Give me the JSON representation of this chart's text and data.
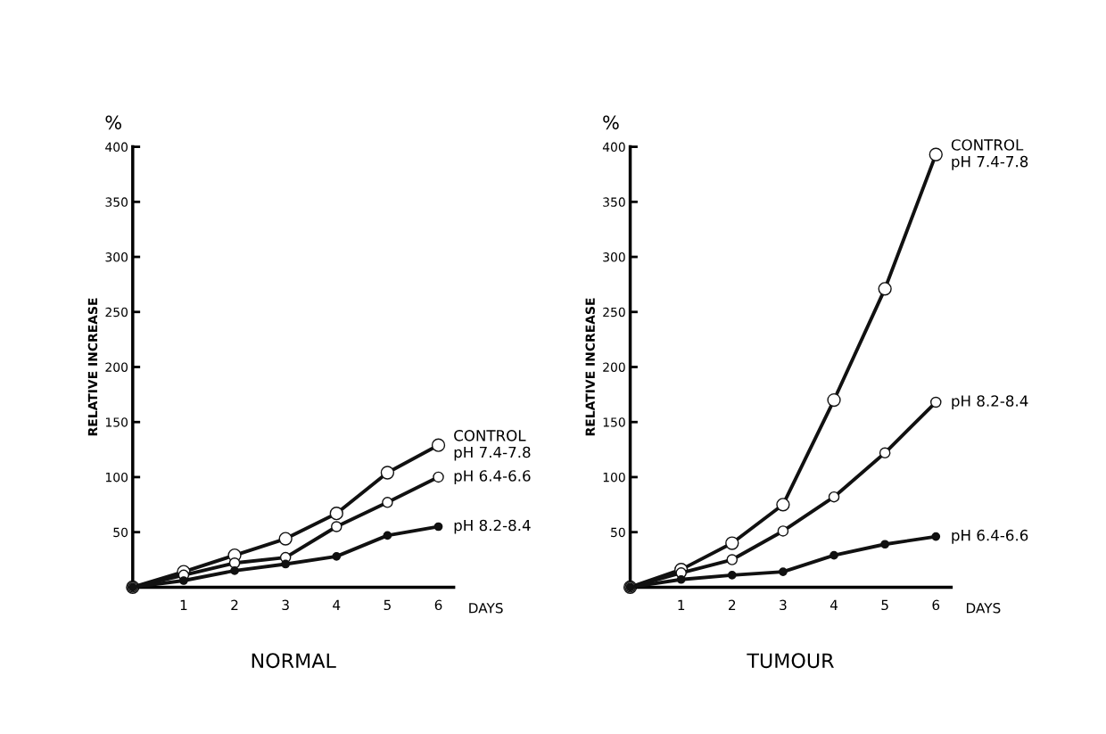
{
  "chart_data": [
    {
      "type": "line",
      "title": "NORMAL",
      "xlabel": "DAYS",
      "ylabel": "RELATIVE INCREASE",
      "annotations": [
        "%"
      ],
      "x": [
        0,
        1,
        2,
        3,
        4,
        5,
        6
      ],
      "xlim": [
        0,
        6.3
      ],
      "xticks": [
        1,
        2,
        3,
        4,
        5,
        6
      ],
      "ylim": [
        0,
        400
      ],
      "yticks": [
        50,
        100,
        150,
        200,
        250,
        300,
        350,
        400
      ],
      "marker": "circle",
      "line_style": "solid",
      "grid": false,
      "legend": false,
      "series": [
        {
          "name": "CONTROL\npH 7.4-7.8",
          "color": "#111111",
          "values": [
            0,
            14,
            29,
            44,
            67,
            104,
            129
          ]
        },
        {
          "name": "pH 6.4-6.6",
          "color": "#111111",
          "values": [
            0,
            11,
            22,
            27,
            55,
            77,
            100
          ]
        },
        {
          "name": "pH 8.2-8.4",
          "color": "#111111",
          "values": [
            0,
            6,
            15,
            21,
            28,
            47,
            55
          ]
        }
      ]
    },
    {
      "type": "line",
      "title": "TUMOUR",
      "xlabel": "DAYS",
      "ylabel": "RELATIVE INCREASE",
      "annotations": [
        "%"
      ],
      "x": [
        0,
        1,
        2,
        3,
        4,
        5,
        6
      ],
      "xlim": [
        0,
        6.3
      ],
      "xticks": [
        1,
        2,
        3,
        4,
        5,
        6
      ],
      "ylim": [
        0,
        400
      ],
      "yticks": [
        50,
        100,
        150,
        200,
        250,
        300,
        350,
        400
      ],
      "marker": "circle",
      "line_style": "solid",
      "grid": false,
      "legend": false,
      "series": [
        {
          "name": "CONTROL\npH 7.4-7.8",
          "color": "#111111",
          "values": [
            0,
            16,
            40,
            75,
            170,
            271,
            393
          ]
        },
        {
          "name": "pH 8.2-8.4",
          "color": "#111111",
          "values": [
            0,
            13,
            25,
            51,
            82,
            122,
            168
          ]
        },
        {
          "name": "pH 6.4-6.6",
          "color": "#111111",
          "values": [
            0,
            7,
            11,
            14,
            29,
            39,
            46
          ]
        }
      ]
    }
  ]
}
